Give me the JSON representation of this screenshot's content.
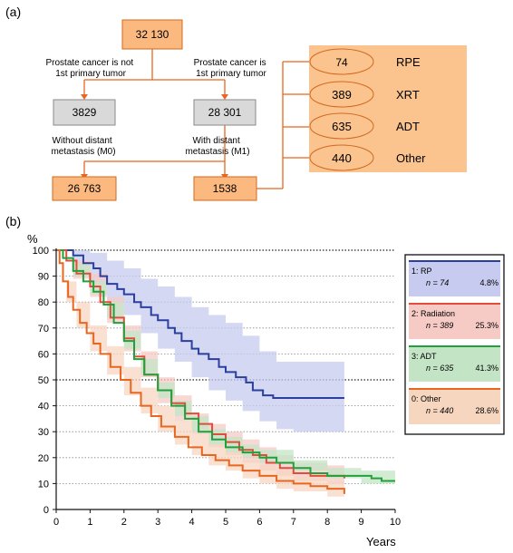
{
  "panel_a": {
    "label": "(a)",
    "root": "32 130",
    "left_note": [
      "Prostate cancer is not",
      "1st primary tumor"
    ],
    "right_note": [
      "Prostate cancer is",
      "1st primary tumor"
    ],
    "left_box": "3829",
    "right_box": "28 301",
    "m0_note": [
      "Without distant",
      "metastasis (M0)"
    ],
    "m1_note": [
      "With distant",
      "metastasis (M1)"
    ],
    "m0_box": "26 763",
    "m1_box": "1538",
    "treatments": [
      {
        "count": "74",
        "label": "RPE"
      },
      {
        "count": "389",
        "label": "XRT"
      },
      {
        "count": "635",
        "label": "ADT"
      },
      {
        "count": "440",
        "label": "Other"
      }
    ]
  },
  "panel_b": {
    "label": "(b)",
    "chart_data": {
      "type": "line",
      "ylabel": "%",
      "xlabel": "Years",
      "xlim": [
        0,
        10
      ],
      "ylim": [
        0,
        100
      ],
      "xticks": [
        "0",
        "1",
        "2",
        "3",
        "4",
        "5",
        "6",
        "7",
        "8",
        "9",
        "10"
      ],
      "yticks": [
        "0",
        "10",
        "20",
        "30",
        "40",
        "50",
        "60",
        "70",
        "80",
        "90",
        "100"
      ],
      "grid": "horizontal-dotted",
      "legend_position": "top-right",
      "series": [
        {
          "legend": "1: RP",
          "n": "n = 74",
          "pct": "4.8%",
          "color": "#2b3f9e",
          "band": "#c7cbef",
          "points": [
            [
              0,
              100
            ],
            [
              0.5,
              98
            ],
            [
              0.8,
              95
            ],
            [
              1.1,
              93
            ],
            [
              1.3,
              90
            ],
            [
              1.5,
              87
            ],
            [
              1.8,
              85
            ],
            [
              2,
              83
            ],
            [
              2.3,
              80
            ],
            [
              2.5,
              78
            ],
            [
              2.8,
              75
            ],
            [
              3,
              73
            ],
            [
              3.3,
              70
            ],
            [
              3.5,
              68
            ],
            [
              3.7,
              65
            ],
            [
              4,
              62
            ],
            [
              4.2,
              60
            ],
            [
              4.5,
              58
            ],
            [
              4.8,
              55
            ],
            [
              5,
              53
            ],
            [
              5.3,
              51
            ],
            [
              5.6,
              49
            ],
            [
              5.8,
              46
            ],
            [
              6.1,
              44
            ],
            [
              6.4,
              43
            ],
            [
              8.5,
              43
            ]
          ],
          "lower": [
            [
              0,
              100
            ],
            [
              0.5,
              94
            ],
            [
              1,
              87
            ],
            [
              1.5,
              80
            ],
            [
              2,
              75
            ],
            [
              2.5,
              68
            ],
            [
              3,
              62
            ],
            [
              3.5,
              57
            ],
            [
              4,
              51
            ],
            [
              4.5,
              46
            ],
            [
              5,
              42
            ],
            [
              5.5,
              38
            ],
            [
              6,
              34
            ],
            [
              6.5,
              31
            ],
            [
              7,
              30
            ],
            [
              8.5,
              30
            ]
          ],
          "upper": [
            [
              0,
              100
            ],
            [
              0.5,
              100
            ],
            [
              1,
              99
            ],
            [
              1.5,
              96
            ],
            [
              2,
              93
            ],
            [
              2.5,
              89
            ],
            [
              3,
              86
            ],
            [
              3.5,
              82
            ],
            [
              4,
              78
            ],
            [
              4.5,
              75
            ],
            [
              5,
              72
            ],
            [
              5.5,
              67
            ],
            [
              6,
              61
            ],
            [
              6.5,
              57
            ],
            [
              7,
              57
            ],
            [
              8.5,
              57
            ]
          ]
        },
        {
          "legend": "2: Radiation",
          "n": "n = 389",
          "pct": "25.3%",
          "color": "#e24c3b",
          "band": "#f6cbc5",
          "points": [
            [
              0,
              100
            ],
            [
              0.3,
              96
            ],
            [
              0.6,
              91
            ],
            [
              1,
              86
            ],
            [
              1.3,
              80
            ],
            [
              1.6,
              74
            ],
            [
              2,
              66
            ],
            [
              2.3,
              59
            ],
            [
              2.6,
              52
            ],
            [
              3,
              46
            ],
            [
              3.4,
              41
            ],
            [
              3.8,
              37
            ],
            [
              4.2,
              33
            ],
            [
              4.6,
              29
            ],
            [
              5,
              26
            ],
            [
              5.4,
              23
            ],
            [
              5.8,
              21
            ],
            [
              6.2,
              18
            ],
            [
              6.6,
              16
            ],
            [
              7,
              14
            ],
            [
              7.5,
              13
            ],
            [
              8,
              13
            ],
            [
              8.5,
              12
            ]
          ],
          "lower": [
            [
              0,
              100
            ],
            [
              0.5,
              89
            ],
            [
              1,
              82
            ],
            [
              1.5,
              72
            ],
            [
              2,
              61
            ],
            [
              2.5,
              51
            ],
            [
              3,
              41
            ],
            [
              3.5,
              34
            ],
            [
              4,
              29
            ],
            [
              4.5,
              24
            ],
            [
              5,
              21
            ],
            [
              5.5,
              18
            ],
            [
              6,
              15
            ],
            [
              6.5,
              13
            ],
            [
              7,
              11
            ],
            [
              8,
              10
            ],
            [
              8.5,
              9
            ]
          ],
          "upper": [
            [
              0,
              100
            ],
            [
              0.5,
              96
            ],
            [
              1,
              91
            ],
            [
              1.5,
              82
            ],
            [
              2,
              71
            ],
            [
              2.5,
              61
            ],
            [
              3,
              51
            ],
            [
              3.5,
              44
            ],
            [
              4,
              37
            ],
            [
              4.5,
              33
            ],
            [
              5,
              30
            ],
            [
              5.5,
              27
            ],
            [
              6,
              24
            ],
            [
              6.5,
              21
            ],
            [
              7,
              18
            ],
            [
              8,
              17
            ],
            [
              8.5,
              16
            ]
          ]
        },
        {
          "legend": "3: ADT",
          "n": "n = 635",
          "pct": "41.3%",
          "color": "#22a03c",
          "band": "#c3e5c6",
          "points": [
            [
              0,
              100
            ],
            [
              0.2,
              97
            ],
            [
              0.5,
              92
            ],
            [
              0.8,
              88
            ],
            [
              1.1,
              84
            ],
            [
              1.4,
              79
            ],
            [
              1.7,
              72
            ],
            [
              2,
              65
            ],
            [
              2.3,
              58
            ],
            [
              2.6,
              52
            ],
            [
              3,
              46
            ],
            [
              3.4,
              40
            ],
            [
              3.8,
              35
            ],
            [
              4.2,
              30
            ],
            [
              4.6,
              27
            ],
            [
              5,
              24
            ],
            [
              5.5,
              22
            ],
            [
              6,
              20
            ],
            [
              6.5,
              18
            ],
            [
              7,
              16
            ],
            [
              7.5,
              14
            ],
            [
              8,
              13
            ],
            [
              8.5,
              13
            ],
            [
              9,
              13
            ],
            [
              9.3,
              12
            ],
            [
              9.6,
              11
            ],
            [
              10,
              11
            ]
          ],
          "lower": [
            [
              0,
              100
            ],
            [
              0.5,
              90
            ],
            [
              1,
              83
            ],
            [
              1.5,
              74
            ],
            [
              2,
              62
            ],
            [
              2.5,
              52
            ],
            [
              3,
              43
            ],
            [
              3.5,
              36
            ],
            [
              4,
              30
            ],
            [
              4.5,
              25
            ],
            [
              5,
              22
            ],
            [
              5.5,
              20
            ],
            [
              6,
              18
            ],
            [
              7,
              15
            ],
            [
              8,
              12
            ],
            [
              9,
              10
            ],
            [
              10,
              8
            ]
          ],
          "upper": [
            [
              0,
              100
            ],
            [
              0.5,
              95
            ],
            [
              1,
              88
            ],
            [
              1.5,
              80
            ],
            [
              2,
              69
            ],
            [
              2.5,
              58
            ],
            [
              3,
              49
            ],
            [
              3.5,
              42
            ],
            [
              4,
              36
            ],
            [
              4.5,
              31
            ],
            [
              5,
              28
            ],
            [
              5.5,
              25
            ],
            [
              6,
              23
            ],
            [
              7,
              19
            ],
            [
              8,
              16
            ],
            [
              9,
              15
            ],
            [
              10,
              14
            ]
          ]
        },
        {
          "legend": "0: Other",
          "n": "n = 440",
          "pct": "28.6%",
          "color": "#e8661f",
          "band": "#f7d6c0",
          "points": [
            [
              0,
              100
            ],
            [
              0.1,
              95
            ],
            [
              0.2,
              88
            ],
            [
              0.35,
              82
            ],
            [
              0.5,
              77
            ],
            [
              0.7,
              72
            ],
            [
              0.9,
              68
            ],
            [
              1.1,
              64
            ],
            [
              1.3,
              60
            ],
            [
              1.6,
              55
            ],
            [
              1.9,
              50
            ],
            [
              2.2,
              45
            ],
            [
              2.5,
              40
            ],
            [
              2.8,
              36
            ],
            [
              3.1,
              32
            ],
            [
              3.5,
              28
            ],
            [
              3.9,
              24
            ],
            [
              4.3,
              21
            ],
            [
              4.7,
              19
            ],
            [
              5.1,
              17
            ],
            [
              5.5,
              15
            ],
            [
              6,
              13
            ],
            [
              6.5,
              11
            ],
            [
              7,
              10
            ],
            [
              7.5,
              9
            ],
            [
              8,
              8
            ],
            [
              8.5,
              6
            ]
          ],
          "lower": [
            [
              0,
              100
            ],
            [
              0.3,
              80
            ],
            [
              0.6,
              70
            ],
            [
              1,
              61
            ],
            [
              1.5,
              52
            ],
            [
              2,
              44
            ],
            [
              2.5,
              37
            ],
            [
              3,
              30
            ],
            [
              3.5,
              25
            ],
            [
              4,
              21
            ],
            [
              4.5,
              17
            ],
            [
              5,
              15
            ],
            [
              5.5,
              12
            ],
            [
              6,
              10
            ],
            [
              6.5,
              8
            ],
            [
              7,
              7
            ],
            [
              8,
              5
            ],
            [
              8.5,
              4
            ]
          ],
          "upper": [
            [
              0,
              100
            ],
            [
              0.3,
              88
            ],
            [
              0.6,
              80
            ],
            [
              1,
              71
            ],
            [
              1.5,
              63
            ],
            [
              2,
              55
            ],
            [
              2.5,
              47
            ],
            [
              3,
              40
            ],
            [
              3.5,
              34
            ],
            [
              4,
              29
            ],
            [
              4.5,
              25
            ],
            [
              5,
              22
            ],
            [
              5.5,
              19
            ],
            [
              6,
              17
            ],
            [
              6.5,
              15
            ],
            [
              7,
              13
            ],
            [
              8,
              11
            ],
            [
              8.5,
              9
            ]
          ]
        }
      ]
    }
  }
}
